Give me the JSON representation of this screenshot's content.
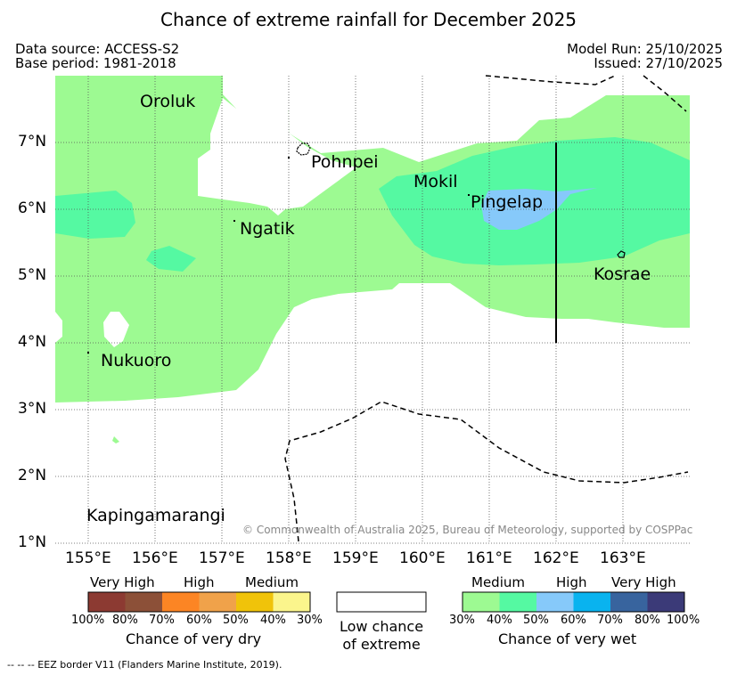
{
  "title": "Chance of extreme rainfall for December 2025",
  "data_source": "Data source: ACCESS-S2",
  "base_period": "Base period: 1981-2018",
  "model_run": "Model Run: 25/10/2025",
  "issued": "Issued: 27/10/2025",
  "map": {
    "lon_labels": [
      "155°E",
      "156°E",
      "157°E",
      "158°E",
      "159°E",
      "160°E",
      "161°E",
      "162°E",
      "163°E"
    ],
    "lat_labels": [
      "7°N",
      "6°N",
      "5°N",
      "4°N",
      "3°N",
      "2°N",
      "1°N"
    ],
    "places": [
      "Oroluk",
      "Pohnpei",
      "Mokil",
      "Pingelap",
      "Ngatik",
      "Kosrae",
      "Nukuoro",
      "Kapingamarangi"
    ],
    "copyright": "© Commonwealth of Australia 2025, Bureau of Meteorology, supported by COSPPac",
    "colors": {
      "wet_medium": "#9dfa92",
      "wet_medium_high": "#55f9a2",
      "wet_high": "#86c9fa"
    }
  },
  "legend": {
    "dry": {
      "groups": [
        "Very High",
        "High",
        "Medium"
      ],
      "ticks": [
        "100%",
        "80%",
        "70%",
        "60%",
        "50%",
        "40%",
        "30%"
      ],
      "colors": [
        "#8c3a32",
        "#8c5038",
        "#fc8524",
        "#f0a24a",
        "#f0c30a",
        "#fbf58c"
      ],
      "caption": "Chance of very dry"
    },
    "low": {
      "line1": "Low chance",
      "line2": "of extreme"
    },
    "wet": {
      "groups": [
        "Medium",
        "High",
        "Very High"
      ],
      "ticks": [
        "30%",
        "40%",
        "50%",
        "60%",
        "70%",
        "80%",
        "100%"
      ],
      "colors": [
        "#9dfa92",
        "#55f9a2",
        "#86c9fa",
        "#09b3ef",
        "#38649e",
        "#3b3a78"
      ],
      "caption": "Chance of very wet"
    }
  },
  "footnote": "--  --  -- EEZ border V11 (Flanders Marine Institute, 2019)."
}
